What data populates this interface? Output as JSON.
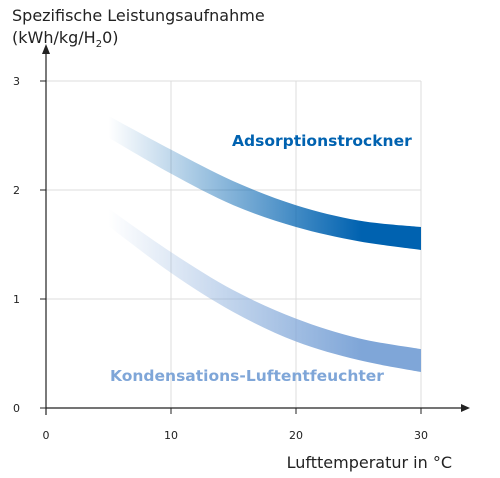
{
  "chart_data": {
    "type": "area",
    "ylabel_line1": "Spezifische Leistungsaufnahme",
    "ylabel_line2_pre": "(kWh/kg/H",
    "ylabel_line2_sub": "2",
    "ylabel_line2_post": "0)",
    "xlabel": "Lufttemperatur in °C",
    "xlim": [
      0,
      30
    ],
    "ylim": [
      0,
      3
    ],
    "xticks": [
      0,
      10,
      20,
      30
    ],
    "yticks": [
      0,
      1,
      2,
      3
    ],
    "grid": true,
    "series": [
      {
        "name": "Adsorptionstrockner",
        "color": "#0062b0",
        "x": [
          5,
          10,
          15,
          20,
          25,
          30
        ],
        "upper": [
          2.68,
          2.37,
          2.08,
          1.86,
          1.72,
          1.66
        ],
        "lower": [
          2.48,
          2.15,
          1.86,
          1.66,
          1.53,
          1.45
        ]
      },
      {
        "name": "Kondensations-Luftentfeuchter",
        "color": "#7fa6d8",
        "x": [
          5,
          10,
          15,
          20,
          25,
          30
        ],
        "upper": [
          1.83,
          1.43,
          1.08,
          0.82,
          0.64,
          0.54
        ],
        "lower": [
          1.67,
          1.24,
          0.88,
          0.61,
          0.44,
          0.33
        ]
      }
    ]
  }
}
